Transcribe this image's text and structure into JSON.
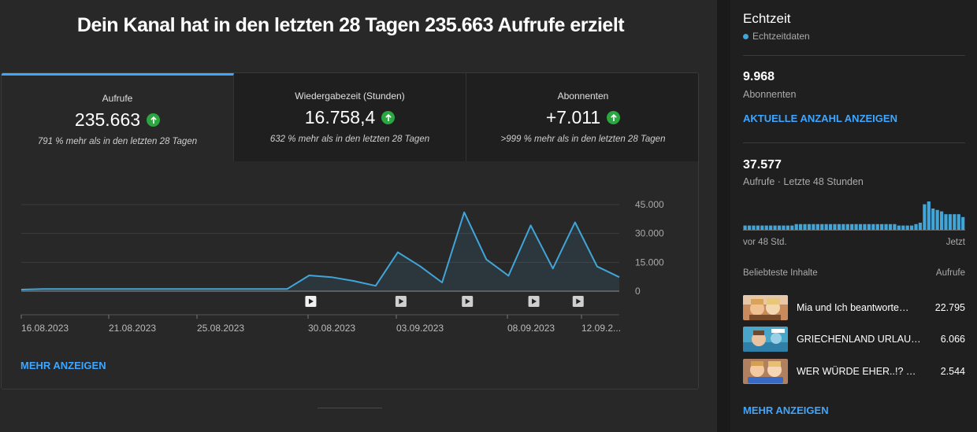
{
  "headline": "Dein Kanal hat in den letzten 28 Tagen 235.663 Aufrufe erzielt",
  "tabs": [
    {
      "title": "Aufrufe",
      "value": "235.663",
      "sub": "791 % mehr als in den letzten 28 Tagen",
      "icon": "arrow-up-icon",
      "active": true
    },
    {
      "title": "Wiedergabezeit (Stunden)",
      "value": "16.758,4",
      "sub": "632 % mehr als in den letzten 28 Tagen",
      "icon": "arrow-up-icon",
      "active": false
    },
    {
      "title": "Abonnenten",
      "value": "+7.011",
      "sub": ">999 % mehr als in den letzten 28 Tagen",
      "icon": "arrow-up-icon",
      "active": false
    }
  ],
  "chart_data": {
    "type": "area",
    "x_labels": [
      "16.08.2023",
      "21.08.2023",
      "25.08.2023",
      "30.08.2023",
      "03.09.2023",
      "08.09.2023",
      "12.09.2..."
    ],
    "y_ticks": [
      "45.000",
      "30.000",
      "15.000",
      "0"
    ],
    "ylim": [
      0,
      45000
    ],
    "values": [
      800,
      1100,
      1100,
      1100,
      1100,
      1100,
      1100,
      1100,
      1100,
      1100,
      1100,
      1100,
      1100,
      8200,
      7300,
      5300,
      2800,
      20200,
      13000,
      4500,
      41000,
      16500,
      8000,
      34200,
      11800,
      35800,
      12800,
      7300
    ],
    "video_marker_indices": [
      13,
      17,
      20,
      23,
      25
    ],
    "color": "#41a5d8",
    "grid": true
  },
  "more_left": "MEHR ANZEIGEN",
  "side": {
    "title": "Echtzeit",
    "live_label": "Echtzeitdaten",
    "subs_value": "9.968",
    "subs_label": "Abonnenten",
    "subs_link": "AKTUELLE ANZAHL ANZEIGEN",
    "views_value": "37.577",
    "views_label": "Aufrufe · Letzte 48 Stunden",
    "bars": [
      3,
      3,
      3,
      3,
      3,
      3,
      3,
      3,
      3,
      3,
      3,
      3,
      4,
      4,
      4,
      4,
      4,
      4,
      4,
      4,
      4,
      4,
      4,
      4,
      4,
      4,
      4,
      4,
      4,
      4,
      4,
      4,
      4,
      4,
      4,
      4,
      3,
      3,
      3,
      3,
      4,
      5,
      18,
      20,
      15,
      14,
      13,
      11,
      11,
      11,
      11,
      9
    ],
    "axis_left": "vor 48 Std.",
    "axis_right": "Jetzt",
    "top_header_left": "Beliebteste Inhalte",
    "top_header_right": "Aufrufe",
    "top_items": [
      {
        "title": "Mia und Ich beantworte…",
        "value": "22.795"
      },
      {
        "title": "GRIECHENLAND URLAUB…",
        "value": "6.066"
      },
      {
        "title": "WER WÜRDE EHER..!? 💀 …",
        "value": "2.544"
      }
    ],
    "more_link": "MEHR ANZEIGEN"
  }
}
